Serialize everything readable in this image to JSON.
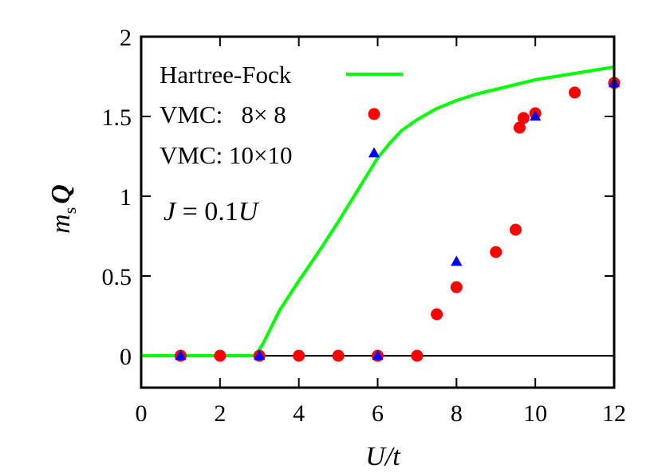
{
  "chart_data": {
    "type": "scatter",
    "xlabel": "U/t",
    "ylabel": "m_s Q",
    "xlim": [
      0,
      12
    ],
    "ylim": [
      -0.2,
      2
    ],
    "xticks": [
      "0",
      "2",
      "4",
      "6",
      "8",
      "10",
      "12"
    ],
    "yticks": [
      "0",
      "0.5",
      "1",
      "1.5",
      "2"
    ],
    "annotation": "J = 0.1U",
    "legend_position": "top-left",
    "series": [
      {
        "name": "Hartree-Fock",
        "kind": "line",
        "color": "#00ff00",
        "x": [
          0,
          1,
          2,
          2.9,
          3.1,
          3.5,
          4.0,
          4.5,
          5.0,
          5.5,
          6.0,
          6.3,
          6.6,
          7.0,
          7.5,
          8.0,
          8.5,
          9.0,
          9.5,
          10.0,
          10.5,
          11.0,
          11.5,
          12.0
        ],
        "y": [
          0,
          0,
          0,
          0,
          0.08,
          0.28,
          0.47,
          0.65,
          0.84,
          1.04,
          1.24,
          1.33,
          1.41,
          1.48,
          1.55,
          1.6,
          1.64,
          1.67,
          1.7,
          1.73,
          1.75,
          1.77,
          1.79,
          1.81
        ]
      },
      {
        "name": "VMC:   8× 8",
        "kind": "circle",
        "color": "#ff0000",
        "x": [
          1,
          2,
          3,
          4,
          5,
          6,
          7,
          7.5,
          8,
          9,
          9.5,
          9.6,
          9.7,
          10,
          11,
          12
        ],
        "y": [
          0,
          0,
          0,
          0,
          0,
          0,
          0,
          0.26,
          0.43,
          0.65,
          0.79,
          1.43,
          1.49,
          1.52,
          1.65,
          1.71
        ]
      },
      {
        "name": "VMC: 10×10",
        "kind": "triangle",
        "color": "#0000ff",
        "x": [
          1,
          3,
          6,
          8,
          10,
          12
        ],
        "y": [
          0,
          0,
          0,
          0.59,
          1.5,
          1.71
        ]
      }
    ]
  }
}
